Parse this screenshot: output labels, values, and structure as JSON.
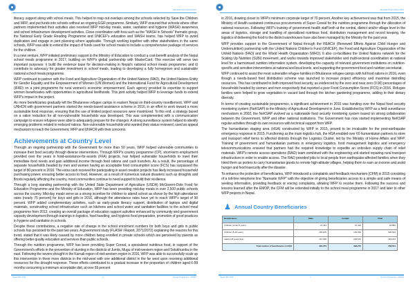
{
  "header": {
    "report_label": "Standard Project Report 2016"
  },
  "left_page": {
    "paragraphs_top": [
      "literacy support along with school meals. This helped to map out overlaps among the schools selected by Save the Children and WFP, and put funds into schools without an ongoing EGR programme. Similarly, WFP ensured that schools where other partners implemented their activities also received WFP mid-day meals, water, sanitation and hygiene (WASH) awareness and school infrastructure development activities. Close coordination with fora such as the \"WASH in Schools\" thematic group, the National Early Grade Reading Programme and UNICEF's education and WASH teams, has helped WFP to avoid duplication and engage in joint planning where applicable. Through working together with other stakeholders in the same schools, WFP was able to extend the impact of funds used for school meals to include a comprehensive package of services for the children.",
      "In a new venture, WFP initiated preliminary support to the Ministry of Education to conduct a cost-benefit analysis of the Nepal school meals programme in 2017, building on WFP's global partnership with MasterCard. This exercise will serve two important purposes: i) build the evidence base for decision-making in Nepal's national school meals programme; and ii) contribute to advocacy for greater investment in school meals, leading to developing a fully homegrown and sustainable national school meals programme.",
      "WFP continued to partner with the Food and Agriculture Organization of the United Nations (FAO), the United Nations Entity for Gender Equality and the Empowerment of Women (UN Women) and the International Fund for Agricultural Development (IFAD) on a joint programme for rural women's economic empowerment. Each agency provided its expertise to support women beneficiaries with opportunities in agricultural livelihoods. This joint activity helped WFP to leverage funds to extend WFP's impact in the project.",
      "As more beneficiaries gradually left the Bhutanese refugee camps in eastern Nepal on third-country resettlement, WFP and UNHCR with government partners started the needs-based assistance scheme in 2016, in an effort to work toward a more sustainable food response, ensuring that the use of limited project resources were maximized. To this end, a strategy based on a ration reduction for all non-vulnerable households was developed. This was complemented with a communication campaign to ensure refugees were able to adequately prepare for the changes. A strong surveillance system helped to identify emerging problems related to reduced rations. Non-vulnerable households who wanted their status reviewed, used an appeal mechanism to reach the Government, WFP and UNHCR with their concerns."
    ],
    "section_title": "Achievements at Country Level",
    "paragraphs_bottom": [
      "Through an ongoing partnership with the Government for more than 50 years, WFP helped vulnerable communities to increase their food security through diverse interventions. Through WFP's country programme (CP), short-term employment provided over the years in food-assistance-for-assets (FFA) projects, has helped vulnerable households to meet their immediate food needs and gain additional income through food rations and cash transfers. As a result, the percentage of separate households headed by men and women having an acceptable food consumption score (FCS) has surpassed the target of 80 percent in 2016. The extra cash received for participating in asset creation projects has likely increased household purchasing power, ensuring better access to food. However, as a result of numerous natural disasters such as droughts and floods regularly affecting the country, most communities continue to need support to build their resilience.",
      "Through a long standing partnership with the United State Department of Agriculture (USDA) McGovern-Dole Food for Education Programme and the Ministry of Education, WFP has been providing mid-day meals in over 2,500 public schools across the country. Mid-day meals serve as a strong incentive for children to attend school as shown by the high attendance rates (nearly 75 percent) for boys and girls in 2016, although the attendance rates have yet to reach WFP's target of 90 percent. WFP added complementary activities, such as early-grade literacy support, distribution of laptops and digital materials, constructing school infrastructure such as kitchens and school water and sanitation facilities to the school meal programme from 2013, creating an overall package of education support activities enhanced by community and government capacity development through trainings in logistics, food handling, and hygienic food preparation, promotion of good practices in hygiene and sanitation in schools.",
      "Despite these contributions, a negative rate of change in the school enrolment numbers for both boys and girls in public schools has persisted for the past two years. A government study (FLASH I Report, 2071/2072) explaining the reasons for this trend, stated that it was likely caused by more children being enrolled in private schools which are perceived by parents as offering better quality education and services than public schools.",
      "Through the nutrition programme, WFP has been providing Super Cereal, a specialised nutritious food, in support of the Government's efforts in the prevention of stunting in the districts of Jumla, Mugu of mid-western region and Solukhumbu in the east. Following the severe drought in the Karnali region of mid-western region in 2016, WFP was able to successfully scale up this intervention in three more districts in the mid-west with one additional district in the far west upon receiving additional resources for the drought response. These efforts contributed to a gradual increase in the proportion of children aged 6-59 months consuming a minimum acceptable diet, at over 65 percent"
    ],
    "footer_left": "Nepal (NP) 2016",
    "page_number": "6",
    "footer_right": "Country Programme - 200319"
  },
  "right_page": {
    "paragraphs": [
      "in 2016, drawing closer to WFP's minimum corporate target of 70 percent. Another key achievement was that from 2015, the Ministry of Health sustained continuous procurements of Super Cereal for the nutrition programme through the allocation of national resources. Following WFP's training of government health staff both at the central, district and/or village level in the areas of logistics, storage and handling of specialized nutritious food, distribution management and record keeping, the logistics of delivering the food to the district warehouses have also been managed by the Ministry for the past year.",
      "WFP provides support to the Government of Nepal through the REACH (Renewed Efforts Against Child Hunger and Undernutrition) partnership with the United Nations Children's Fund (UNICEF), the Food and Agriculture Organization of the United Nations (FAO) and the World Health Organization (WHO). It also co-facilitates the United Nations network for the Scaling Up Nutrition (SUN) movement, and works towards improved stakeholder and multi-sectoral coordination at national level for a harmonised nutrition information system, developing the capacity of relevant government institutions on nutrition-specific and sensitive interventions at national and local levels, and supporting the government food and nutrition secretariat.",
      "WFP continued to assist the most vulnerable refugee families in Bhutanese refugee camps with full food rations in 2016, even though a needs-based food distribution scheme was launched to increase project efficiency and maximise dwindling resources. This has contributed to both improved food security, as evidenced by the zero and near zero (0.90) percentages of households headed by women and men respectively that reported a poor Food Consumption Score (FCS) in 2016. Refugee families were helped to grow vegetables in vacant land through the kitchen gardening programme, adding to their dietary diversity.",
      "In terms of creating sustainable programmes, a significant achievement in 2016 was handing over the Nepal food security monitoring system (NeKSAP) to the Ministry of Agricultural Development in June. Established by WFP as a field surveillance mechanism in 2002, the NeKSAP evolved as a nationwide food security monitoring system based on strong collaboration between the Government, WFP and other national institutions. The Government has now started implementing NeKSAP regular activities through its own resources with technical support from WFP.",
      "The humanitarian staging area (HSA) constructed by WFP in 2015, proved to be invaluable for the post-earthquake emergency response in 2015. Functioning as the main logistics hub, the HSA enabled over 60 humanitarian partners to store and transport relief items to affected districts through the Logistics Cluster, led by the Ministry of Home Affairs and WFP. Training of government and humanitarian partners in emergency logistics, food management logistics and emergency telecommunications ensured that partners had the required knowledge to expedite an unbroken supply chain of relief materials. WFP's remote access operations (RAO) team combined with the engineering unit started repairing rural transport infrastructure in order to enable access. The RAO provided jobs to local people from earthquake-affected families when they hired them as porters to carry humanitarian goods to remote high-altitude villages, helping them to earn an income and avoid hunger and food insecurity after the disaster.",
      "To enhance the protection of beneficiaries, WFP introduced a complaints and feedback mechanism (CFM) in 2015 consisting of a toll-free telephone line \"Namaste WFP\" with the objective of giving beneficiaries access to a simple and safe means of seeking information, providing feedback or voicing complaints, allowing WFP to resolve them. Following the success and lessons learned after the EMOP, the CFM will be extended initially to the school meal programme in 2017 and later to other WFP projects in Nepal."
    ],
    "beneficiaries": {
      "icon": "people-icon",
      "title": "Annual Country Beneficiaries",
      "columns": [
        "Beneficiaries",
        "Male",
        "Female",
        "Total"
      ],
      "rows": [
        [
          "Children (under 5 years)",
          "47,433",
          "47,433",
          "94,866"
        ],
        [
          "Children (5-18 years)",
          "155,205",
          "145,299",
          "300,504"
        ],
        [
          "Adults (18 years plus)",
          "197,638",
          "205,543",
          "403,181"
        ]
      ],
      "total_row": [
        "Total number of beneficiaries in 2016",
        "400,276",
        "398,275",
        "798,551"
      ]
    },
    "footer_left": "Nepal (NP) 2016",
    "page_number": "7",
    "footer_right": "Country Programme - 200319"
  },
  "colors": {
    "accent": "#3a8dde",
    "table_header": "#a9d4e8",
    "table_total": "#dceefa"
  }
}
